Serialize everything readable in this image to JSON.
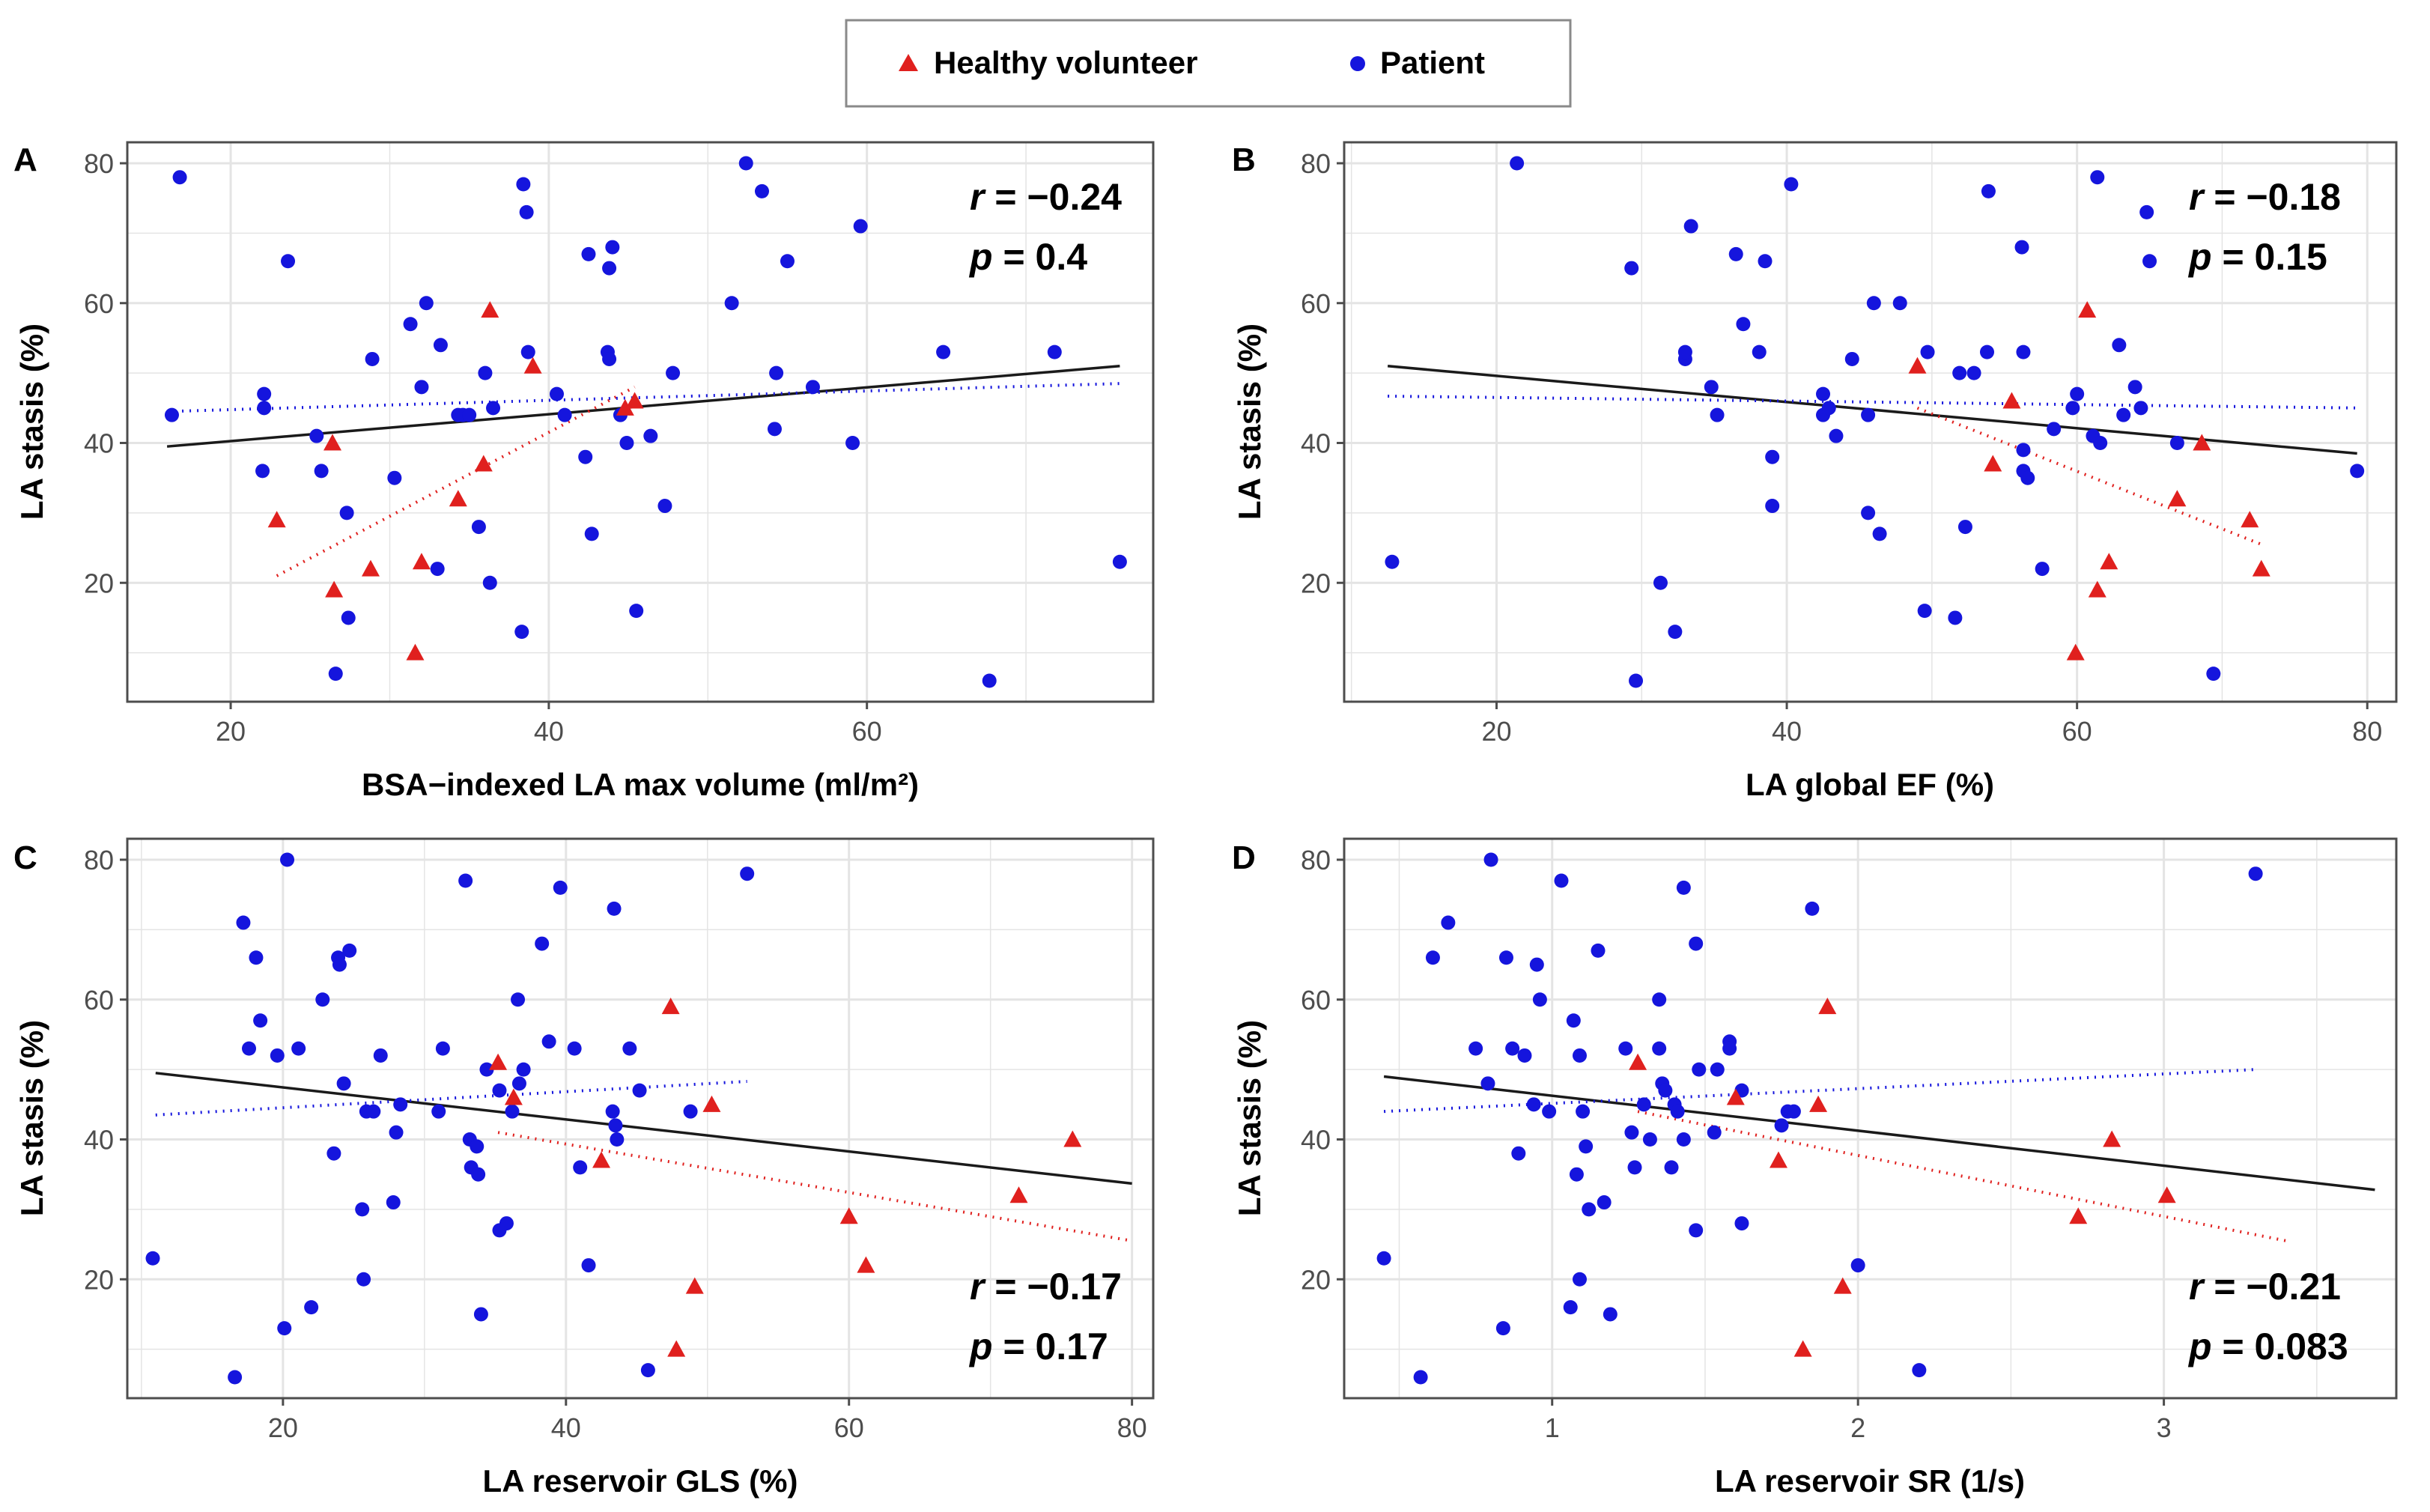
{
  "colors": {
    "healthy": "#e0201e",
    "patient": "#1515dd",
    "fit_overall": "#1a1a1a",
    "grid": "#e4e4e4",
    "panel_border": "#4d4d4d"
  },
  "legend": {
    "healthy_label": "Healthy volunteer",
    "patient_label": "Patient"
  },
  "chart_data": [
    {
      "panel": "A",
      "type": "scatter",
      "xlabel": "BSA−indexed LA max volume (ml/m²)",
      "ylabel": "LA stasis (%)",
      "xlim": [
        13.5,
        78
      ],
      "ylim": [
        3,
        83
      ],
      "xticks": [
        20,
        40,
        60
      ],
      "yticks": [
        20,
        40,
        60,
        80
      ],
      "stat_r": "r = −0.24",
      "stat_p": "p = 0.4",
      "stat_position": "top-right",
      "healthy": [
        [
          22.9,
          29
        ],
        [
          26.4,
          40
        ],
        [
          26.5,
          19
        ],
        [
          28.8,
          22
        ],
        [
          31.6,
          10
        ],
        [
          32,
          23
        ],
        [
          34.3,
          32
        ],
        [
          35.9,
          37
        ],
        [
          36.3,
          59
        ],
        [
          39,
          51
        ],
        [
          44.8,
          45
        ],
        [
          45.4,
          46
        ]
      ],
      "patient": [
        [
          16.3,
          44
        ],
        [
          16.8,
          78
        ],
        [
          22,
          36
        ],
        [
          22.1,
          45
        ],
        [
          22.1,
          47
        ],
        [
          23.6,
          66
        ],
        [
          25.4,
          41
        ],
        [
          25.7,
          36
        ],
        [
          26.6,
          7
        ],
        [
          27.3,
          30
        ],
        [
          27.4,
          15
        ],
        [
          28.9,
          52
        ],
        [
          30.3,
          35
        ],
        [
          31.3,
          57
        ],
        [
          32,
          48
        ],
        [
          32.3,
          60
        ],
        [
          33,
          22
        ],
        [
          33.2,
          54
        ],
        [
          34.3,
          44
        ],
        [
          34.6,
          44
        ],
        [
          35,
          44
        ],
        [
          35.6,
          28
        ],
        [
          36,
          50
        ],
        [
          36.3,
          20
        ],
        [
          36.5,
          45
        ],
        [
          38.3,
          13
        ],
        [
          38.4,
          77
        ],
        [
          38.6,
          73
        ],
        [
          38.7,
          53
        ],
        [
          40.5,
          47
        ],
        [
          41,
          44
        ],
        [
          42.3,
          38
        ],
        [
          42.5,
          67
        ],
        [
          42.7,
          27
        ],
        [
          43.7,
          53
        ],
        [
          43.8,
          52
        ],
        [
          43.8,
          65
        ],
        [
          44,
          68
        ],
        [
          44.5,
          44
        ],
        [
          44.9,
          40
        ],
        [
          45.5,
          16
        ],
        [
          46.4,
          41
        ],
        [
          47.3,
          31
        ],
        [
          47.8,
          50
        ],
        [
          51.5,
          60
        ],
        [
          52.4,
          80
        ],
        [
          53.4,
          76
        ],
        [
          54.2,
          42
        ],
        [
          54.3,
          50
        ],
        [
          55,
          66
        ],
        [
          56.6,
          48
        ],
        [
          59.1,
          40
        ],
        [
          59.6,
          71
        ],
        [
          64.8,
          53
        ],
        [
          67.7,
          6
        ],
        [
          71.8,
          53
        ],
        [
          75.9,
          23
        ]
      ],
      "fit_overall": [
        [
          16,
          39.5
        ],
        [
          75.9,
          51
        ]
      ],
      "fit_healthy": [
        [
          22.9,
          21
        ],
        [
          45.4,
          48
        ]
      ],
      "fit_patient": [
        [
          16,
          44.5
        ],
        [
          75.9,
          48.5
        ]
      ]
    },
    {
      "panel": "B",
      "type": "scatter",
      "xlabel": "LA global EF (%)",
      "ylabel": "LA stasis (%)",
      "xlim": [
        9.5,
        82
      ],
      "ylim": [
        3,
        83
      ],
      "xticks": [
        20,
        40,
        60,
        80
      ],
      "yticks": [
        20,
        40,
        60,
        80
      ],
      "stat_r": "r = −0.18",
      "stat_p": "p = 0.15",
      "stat_position": "top-right",
      "healthy": [
        [
          49,
          51
        ],
        [
          54.2,
          37
        ],
        [
          55.5,
          46
        ],
        [
          59.9,
          10
        ],
        [
          60.7,
          59
        ],
        [
          61.4,
          19
        ],
        [
          62.2,
          23
        ],
        [
          66.9,
          32
        ],
        [
          68.6,
          40
        ],
        [
          71.9,
          29
        ],
        [
          72.7,
          22
        ]
      ],
      "patient": [
        [
          12.8,
          23
        ],
        [
          21.4,
          80
        ],
        [
          29.3,
          65
        ],
        [
          29.6,
          6
        ],
        [
          31.3,
          20
        ],
        [
          32.3,
          13
        ],
        [
          33,
          52
        ],
        [
          33,
          53
        ],
        [
          33.4,
          71
        ],
        [
          34.8,
          48
        ],
        [
          35.2,
          44
        ],
        [
          36.5,
          67
        ],
        [
          37,
          57
        ],
        [
          38.1,
          53
        ],
        [
          38.5,
          66
        ],
        [
          39,
          31
        ],
        [
          39,
          38
        ],
        [
          40.3,
          77
        ],
        [
          42.5,
          47
        ],
        [
          42.5,
          44
        ],
        [
          42.9,
          45
        ],
        [
          43.4,
          41
        ],
        [
          44.5,
          52
        ],
        [
          45.6,
          44
        ],
        [
          45.6,
          30
        ],
        [
          46,
          60
        ],
        [
          46.4,
          27
        ],
        [
          47.8,
          60
        ],
        [
          49.5,
          16
        ],
        [
          49.7,
          53
        ],
        [
          51.6,
          15
        ],
        [
          51.9,
          50
        ],
        [
          52.3,
          28
        ],
        [
          52.9,
          50
        ],
        [
          53.8,
          53
        ],
        [
          53.9,
          76
        ],
        [
          56.2,
          68
        ],
        [
          56.3,
          53
        ],
        [
          56.3,
          39
        ],
        [
          56.3,
          36
        ],
        [
          56.6,
          35
        ],
        [
          57.6,
          22
        ],
        [
          58.4,
          42
        ],
        [
          59.7,
          45
        ],
        [
          60,
          47
        ],
        [
          61.1,
          41
        ],
        [
          61.4,
          78
        ],
        [
          61.6,
          40
        ],
        [
          62.9,
          54
        ],
        [
          63.2,
          44
        ],
        [
          64,
          48
        ],
        [
          64.4,
          45
        ],
        [
          64.8,
          73
        ],
        [
          65,
          66
        ],
        [
          66.9,
          40
        ],
        [
          69.4,
          7
        ],
        [
          79.3,
          36
        ]
      ],
      "fit_overall": [
        [
          12.5,
          51
        ],
        [
          79.3,
          38.5
        ]
      ],
      "fit_healthy": [
        [
          49,
          45
        ],
        [
          72.7,
          25.5
        ]
      ],
      "fit_patient": [
        [
          12.5,
          46.7
        ],
        [
          79.3,
          45
        ]
      ]
    },
    {
      "panel": "C",
      "type": "scatter",
      "xlabel": "LA reservoir GLS (%)",
      "ylabel": "LA stasis (%)",
      "xlim": [
        9,
        81.5
      ],
      "ylim": [
        3,
        83
      ],
      "xticks": [
        20,
        40,
        60,
        80
      ],
      "yticks": [
        20,
        40,
        60,
        80
      ],
      "stat_r": "r = −0.17",
      "stat_p": "p = 0.17",
      "stat_position": "bottom-right",
      "healthy": [
        [
          35.2,
          51
        ],
        [
          36.3,
          46
        ],
        [
          42.5,
          37
        ],
        [
          47.4,
          59
        ],
        [
          47.8,
          10
        ],
        [
          49.1,
          19
        ],
        [
          50.3,
          45
        ],
        [
          60,
          29
        ],
        [
          61.2,
          22
        ],
        [
          72,
          32
        ],
        [
          75.8,
          40
        ]
      ],
      "patient": [
        [
          10.8,
          23
        ],
        [
          16.6,
          6
        ],
        [
          17.2,
          71
        ],
        [
          17.6,
          53
        ],
        [
          18.1,
          66
        ],
        [
          18.4,
          57
        ],
        [
          19.6,
          52
        ],
        [
          20.1,
          13
        ],
        [
          20.3,
          80
        ],
        [
          21.1,
          53
        ],
        [
          22,
          16
        ],
        [
          22.8,
          60
        ],
        [
          23.6,
          38
        ],
        [
          23.9,
          66
        ],
        [
          24,
          65
        ],
        [
          24.3,
          48
        ],
        [
          24.7,
          67
        ],
        [
          25.6,
          30
        ],
        [
          25.7,
          20
        ],
        [
          25.9,
          44
        ],
        [
          26.4,
          44
        ],
        [
          26.9,
          52
        ],
        [
          27.8,
          31
        ],
        [
          28,
          41
        ],
        [
          28.3,
          45
        ],
        [
          31,
          44
        ],
        [
          31.3,
          53
        ],
        [
          32.9,
          77
        ],
        [
          33.2,
          40
        ],
        [
          33.3,
          36
        ],
        [
          33.7,
          39
        ],
        [
          33.8,
          35
        ],
        [
          34,
          15
        ],
        [
          34.4,
          50
        ],
        [
          35.3,
          47
        ],
        [
          35.3,
          27
        ],
        [
          35.8,
          28
        ],
        [
          36.2,
          44
        ],
        [
          36.6,
          60
        ],
        [
          36.7,
          48
        ],
        [
          37,
          50
        ],
        [
          38.3,
          68
        ],
        [
          38.8,
          54
        ],
        [
          39.6,
          76
        ],
        [
          40.6,
          53
        ],
        [
          41,
          36
        ],
        [
          41.6,
          22
        ],
        [
          43.3,
          44
        ],
        [
          43.4,
          73
        ],
        [
          43.5,
          42
        ],
        [
          43.6,
          40
        ],
        [
          44.5,
          53
        ],
        [
          45.2,
          47
        ],
        [
          45.8,
          7
        ],
        [
          48.8,
          44
        ],
        [
          52.8,
          78
        ]
      ],
      "fit_overall": [
        [
          11,
          49.5
        ],
        [
          80,
          33.7
        ]
      ],
      "fit_healthy": [
        [
          35.2,
          41
        ],
        [
          80,
          25.5
        ]
      ],
      "fit_patient": [
        [
          11,
          43.5
        ],
        [
          52.8,
          48.3
        ]
      ]
    },
    {
      "panel": "D",
      "type": "scatter",
      "xlabel": "LA reservoir SR (1/s)",
      "ylabel": "LA stasis (%)",
      "xlim": [
        0.32,
        3.76
      ],
      "ylim": [
        3,
        83
      ],
      "xticks": [
        1,
        2,
        3
      ],
      "yticks": [
        20,
        40,
        60,
        80
      ],
      "stat_r": "r = −0.21",
      "stat_p": "p = 0.083",
      "stat_position": "bottom-right",
      "healthy": [
        [
          1.28,
          51
        ],
        [
          1.6,
          46
        ],
        [
          1.74,
          37
        ],
        [
          1.82,
          10
        ],
        [
          1.87,
          45
        ],
        [
          1.9,
          59
        ],
        [
          1.95,
          19
        ],
        [
          2.72,
          29
        ],
        [
          2.83,
          40
        ],
        [
          3.01,
          32
        ]
      ],
      "patient": [
        [
          0.45,
          23
        ],
        [
          0.57,
          6
        ],
        [
          0.61,
          66
        ],
        [
          0.66,
          71
        ],
        [
          0.75,
          53
        ],
        [
          0.79,
          48
        ],
        [
          0.8,
          80
        ],
        [
          0.84,
          13
        ],
        [
          0.85,
          66
        ],
        [
          0.87,
          53
        ],
        [
          0.89,
          38
        ],
        [
          0.91,
          52
        ],
        [
          0.94,
          45
        ],
        [
          0.95,
          65
        ],
        [
          0.96,
          60
        ],
        [
          0.99,
          44
        ],
        [
          1.03,
          77
        ],
        [
          1.06,
          16
        ],
        [
          1.07,
          57
        ],
        [
          1.08,
          35
        ],
        [
          1.09,
          20
        ],
        [
          1.09,
          52
        ],
        [
          1.1,
          44
        ],
        [
          1.11,
          39
        ],
        [
          1.12,
          30
        ],
        [
          1.15,
          67
        ],
        [
          1.17,
          31
        ],
        [
          1.19,
          15
        ],
        [
          1.24,
          53
        ],
        [
          1.26,
          41
        ],
        [
          1.27,
          36
        ],
        [
          1.3,
          45
        ],
        [
          1.32,
          40
        ],
        [
          1.35,
          53
        ],
        [
          1.35,
          60
        ],
        [
          1.36,
          48
        ],
        [
          1.37,
          47
        ],
        [
          1.39,
          36
        ],
        [
          1.4,
          45
        ],
        [
          1.41,
          44
        ],
        [
          1.43,
          76
        ],
        [
          1.43,
          40
        ],
        [
          1.47,
          27
        ],
        [
          1.47,
          68
        ],
        [
          1.48,
          50
        ],
        [
          1.53,
          41
        ],
        [
          1.54,
          50
        ],
        [
          1.58,
          54
        ],
        [
          1.58,
          53
        ],
        [
          1.62,
          28
        ],
        [
          1.62,
          47
        ],
        [
          1.75,
          42
        ],
        [
          1.77,
          44
        ],
        [
          1.79,
          44
        ],
        [
          1.85,
          73
        ],
        [
          2,
          22
        ],
        [
          2.2,
          7
        ],
        [
          3.3,
          78
        ]
      ],
      "fit_overall": [
        [
          0.45,
          49
        ],
        [
          3.69,
          32.8
        ]
      ],
      "fit_healthy": [
        [
          1.28,
          44
        ],
        [
          3.4,
          25.5
        ]
      ],
      "fit_patient": [
        [
          0.45,
          44
        ],
        [
          3.3,
          50
        ]
      ]
    }
  ]
}
